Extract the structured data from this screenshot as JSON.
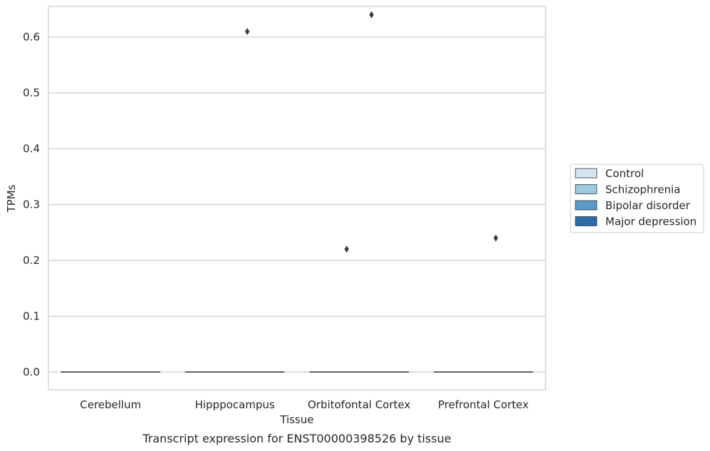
{
  "chart_data": {
    "type": "box",
    "title": "",
    "caption": "Transcript expression for ENST00000398526 by tissue",
    "xlabel": "Tissue",
    "ylabel": "TPMs",
    "categories": [
      "Cerebellum",
      "Hipppocampus",
      "Orbitofontal Cortex",
      "Prefrontal Cortex"
    ],
    "ylim": [
      -0.032,
      0.655
    ],
    "yticks": [
      0.0,
      0.1,
      0.2,
      0.3,
      0.4,
      0.5,
      0.6
    ],
    "ytick_labels": [
      "0.0",
      "0.1",
      "0.2",
      "0.3",
      "0.4",
      "0.5",
      "0.6"
    ],
    "grid": true,
    "legend_position": "right",
    "series": [
      {
        "name": "Control",
        "color": "#d4e4f3",
        "median": 0.0
      },
      {
        "name": "Schizophrenia",
        "color": "#9ecae1",
        "median": 0.0
      },
      {
        "name": "Bipolar disorder",
        "color": "#5a9ac8",
        "median": 0.0
      },
      {
        "name": "Major depression",
        "color": "#2d6ea8",
        "median": 0.0
      }
    ],
    "outliers": [
      {
        "category": "Hipppocampus",
        "series": "Bipolar disorder",
        "value": 0.61
      },
      {
        "category": "Orbitofontal Cortex",
        "series": "Schizophrenia",
        "value": 0.22
      },
      {
        "category": "Orbitofontal Cortex",
        "series": "Bipolar disorder",
        "value": 0.64
      },
      {
        "category": "Prefrontal Cortex",
        "series": "Bipolar disorder",
        "value": 0.24
      }
    ]
  }
}
